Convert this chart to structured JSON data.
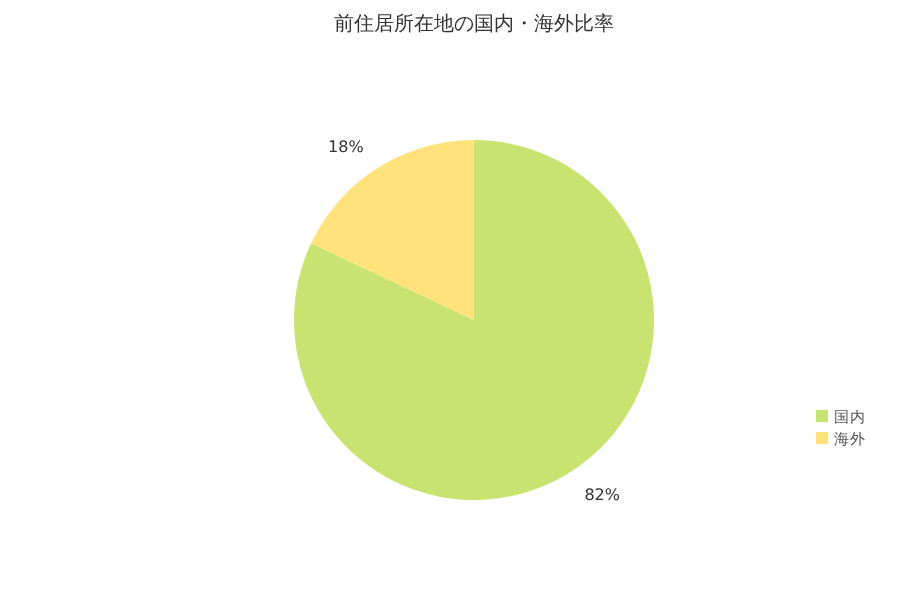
{
  "chart_data": {
    "type": "pie",
    "title": "前住居所在地の国内・海外比率",
    "categories": [
      "国内",
      "海外"
    ],
    "values": [
      82,
      18
    ],
    "colors": [
      "#c8e36f",
      "#ffe27a"
    ],
    "value_labels": [
      "82%",
      "18%"
    ],
    "legend": "right"
  }
}
